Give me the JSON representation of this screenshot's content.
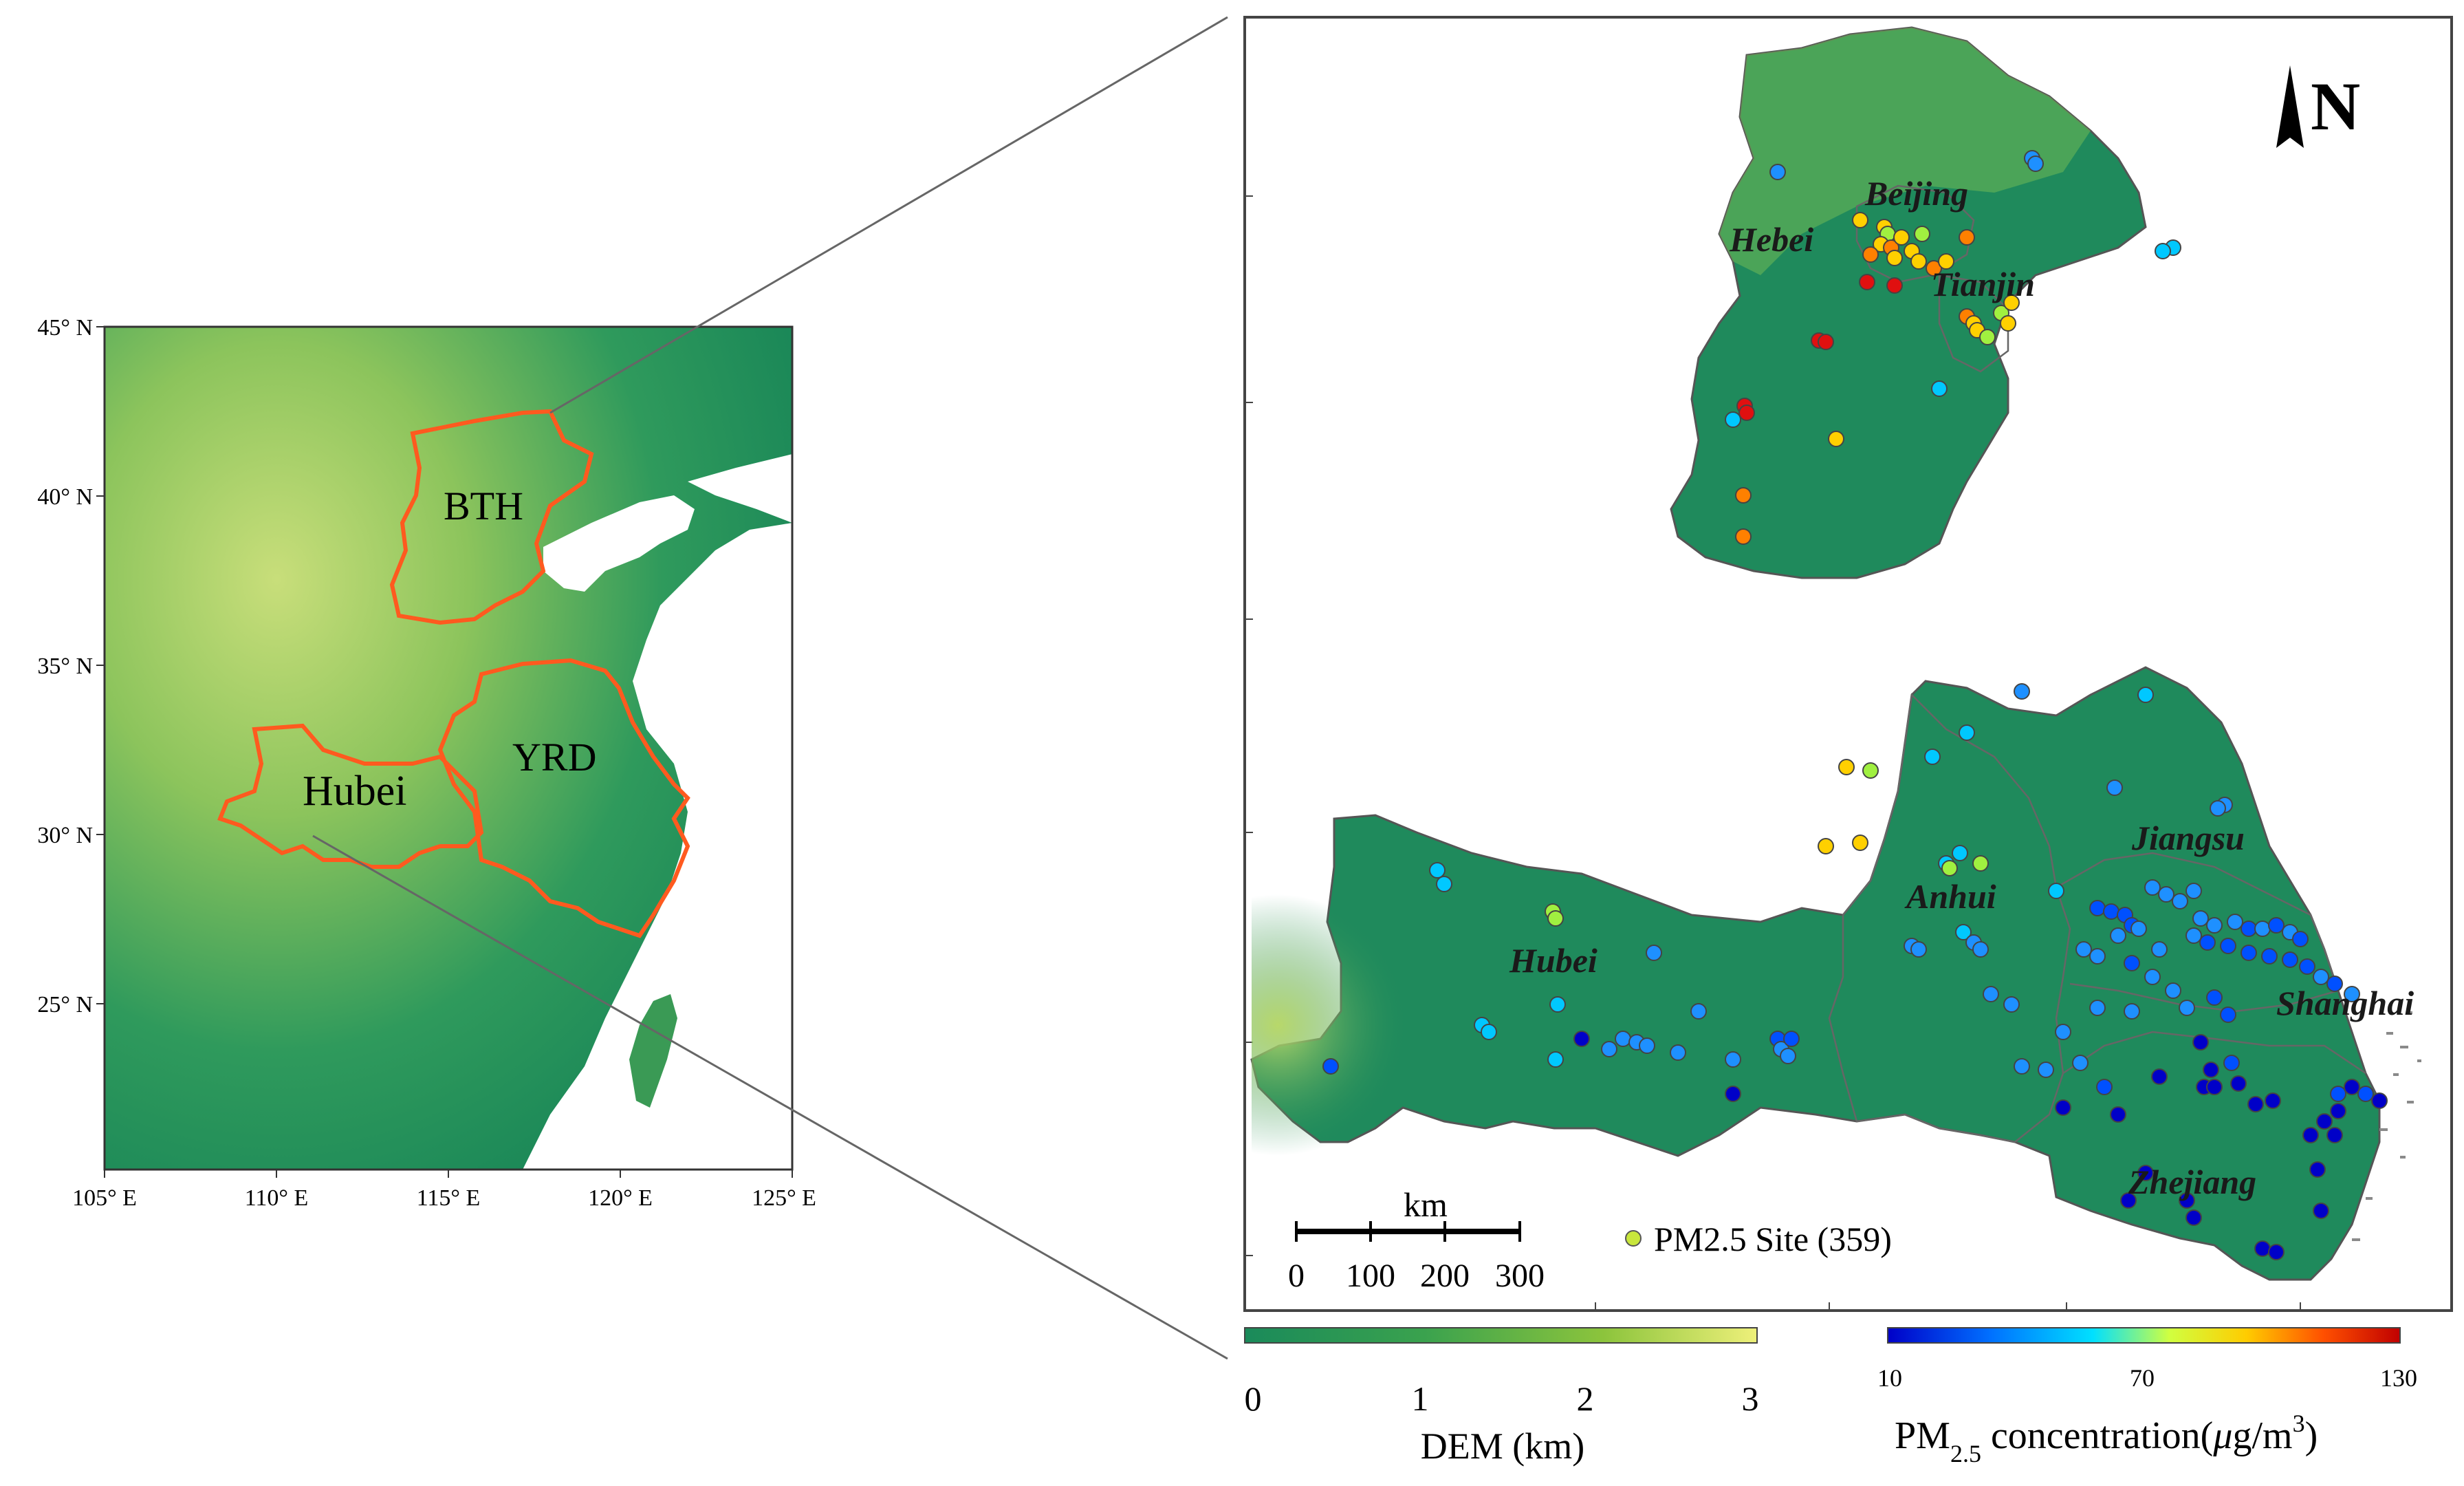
{
  "overview_map": {
    "lat_labels": [
      "45° N",
      "40° N",
      "35° N",
      "30° N",
      "25° N"
    ],
    "lon_labels": [
      "105° E",
      "110° E",
      "115° E",
      "120° E",
      "125° E"
    ],
    "region_labels": {
      "bth": "BTH",
      "yrd": "YRD",
      "hubei": "Hubei"
    }
  },
  "detail_map": {
    "north_label": "N",
    "province_labels": {
      "beijing": "Beijing",
      "hebei": "Hebei",
      "tianjin": "Tianjin",
      "jiangsu": "Jiangsu",
      "anhui": "Anhui",
      "hubei": "Hubei",
      "shanghai": "Shanghai",
      "zhejiang": "Zhejiang"
    },
    "scale_bar": {
      "unit": "km",
      "ticks": [
        "0",
        "100",
        "200",
        "300"
      ]
    },
    "legend_site_label": "PM2.5 Site (359)"
  },
  "dem_colorbar": {
    "ticks": [
      "0",
      "1",
      "2",
      "3"
    ],
    "title": "DEM (km)",
    "colors": [
      "#1a8a5a",
      "#3aa24e",
      "#8cc43c",
      "#e6ec6a"
    ]
  },
  "pm_colorbar": {
    "ticks": [
      "10",
      "70",
      "130"
    ],
    "title_prefix": "PM",
    "title_sub": "2.5",
    "title_suffix": " concentration(",
    "title_unit_mu": "μ",
    "title_unit_rest": "g/m",
    "title_unit_sup": "3",
    "title_close": ")",
    "colors": [
      "#0000c8",
      "#0070ff",
      "#00e0ff",
      "#d0ff40",
      "#ffcc00",
      "#ff5000",
      "#c00000"
    ]
  }
}
